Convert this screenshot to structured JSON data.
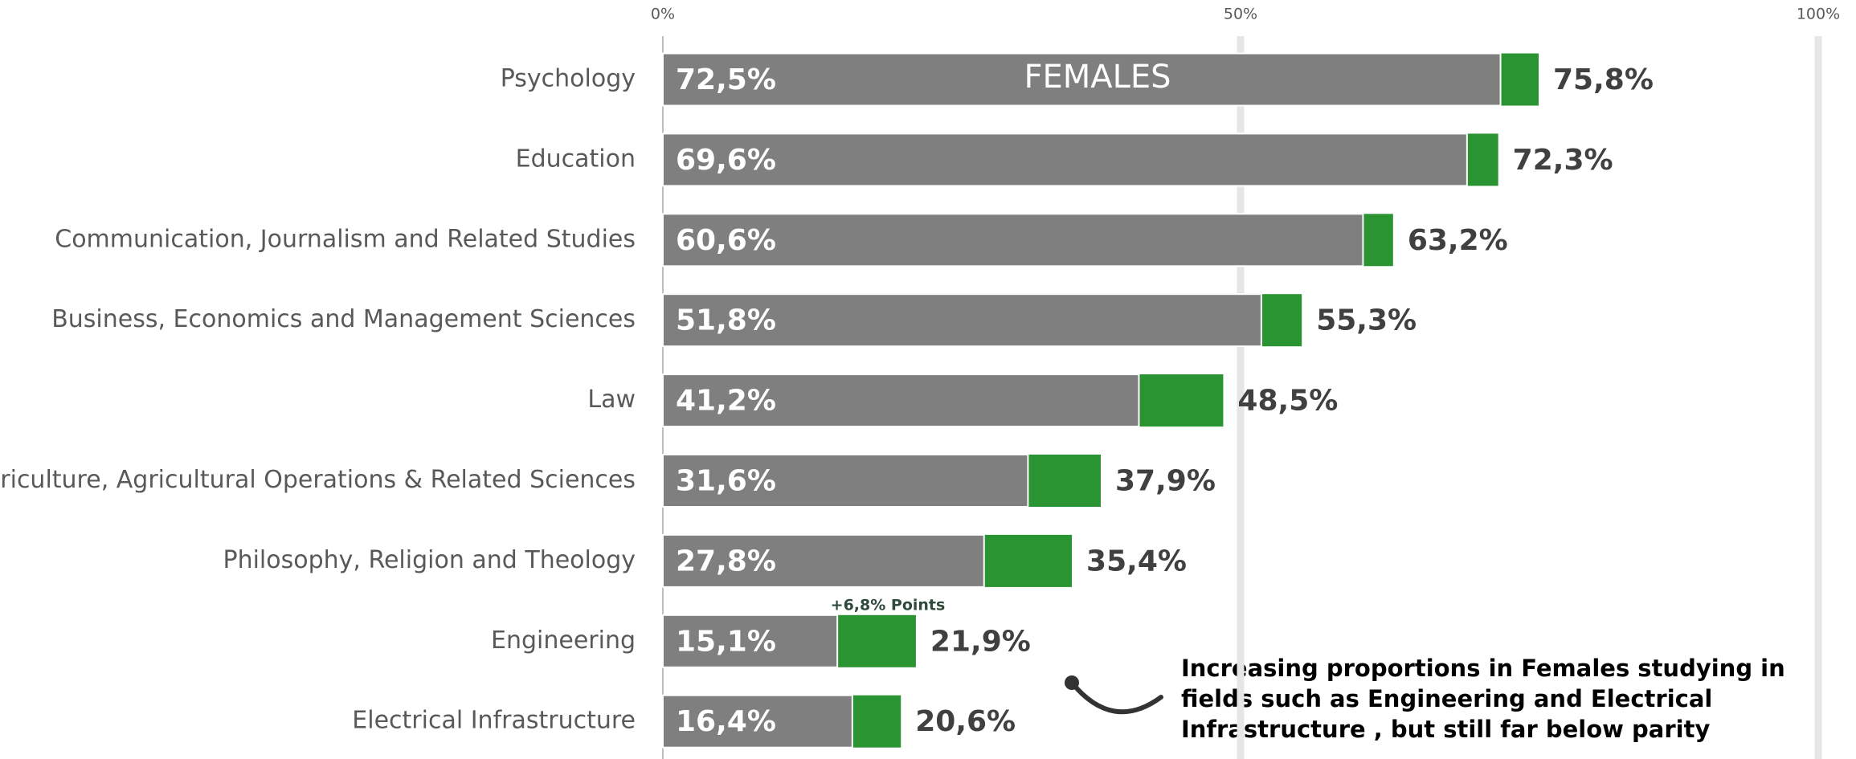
{
  "chart_data": {
    "type": "bar",
    "orientation": "horizontal",
    "categories": [
      "Psychology",
      "Education",
      "Communication, Journalism and Related Studies",
      "Business, Economics and Management Sciences",
      "Law",
      "Agriculture, Agricultural Operations & Related Sciences",
      "Philosophy, Religion and Theology",
      "Engineering",
      "Electrical Infrastructure"
    ],
    "series": [
      {
        "color": "#7f7f7f",
        "values": [
          72.5,
          69.6,
          60.6,
          51.8,
          41.2,
          31.6,
          27.8,
          15.1,
          16.4
        ],
        "value_labels": [
          "72,5%",
          "69,6%",
          "60,6%",
          "51,8%",
          "41,2%",
          "31,6%",
          "27,8%",
          "15,1%",
          "16,4%"
        ]
      },
      {
        "color": "#2a9432",
        "values": [
          75.8,
          72.3,
          63.2,
          55.3,
          48.5,
          37.9,
          35.4,
          21.9,
          20.6
        ],
        "value_labels": [
          "75,8%",
          "72,3%",
          "63,2%",
          "55,3%",
          "48,5%",
          "37,9%",
          "35,4%",
          "21,9%",
          "20,6%"
        ]
      }
    ],
    "xlim": [
      0,
      100
    ],
    "xticks": [
      {
        "value": 0,
        "label": "0%"
      },
      {
        "value": 50,
        "label": "50%"
      },
      {
        "value": 100,
        "label": "100%"
      }
    ],
    "grid": true,
    "annotations": [
      "FEMALES",
      "+6,8% Points",
      "Increasing proportions in Females studying in",
      "fields such as Engineering and Electrical",
      "Infrastructure , but still far below parity"
    ]
  }
}
